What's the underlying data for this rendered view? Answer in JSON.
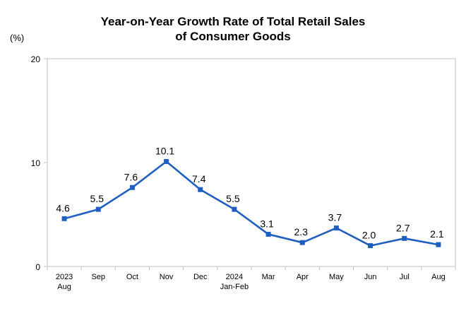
{
  "chart_data": {
    "type": "line",
    "title_lines": [
      "Year-on-Year Growth Rate of Total Retail Sales",
      "of Consumer Goods"
    ],
    "unit": "(%)",
    "categories": [
      [
        "2023",
        "Aug"
      ],
      [
        "Sep"
      ],
      [
        "Oct"
      ],
      [
        "Nov"
      ],
      [
        "Dec"
      ],
      [
        "2024",
        "Jan-Feb"
      ],
      [
        "Mar"
      ],
      [
        "Apr"
      ],
      [
        "May"
      ],
      [
        "Jun"
      ],
      [
        "Jul"
      ],
      [
        "Aug"
      ]
    ],
    "values": [
      4.6,
      5.5,
      7.6,
      10.1,
      7.4,
      5.5,
      3.1,
      2.3,
      3.7,
      2.0,
      2.7,
      2.1
    ],
    "data_labels": [
      "4.6",
      "5.5",
      "7.6",
      "10.1",
      "7.4",
      "5.5",
      "3.1",
      "2.3",
      "3.7",
      "2.0",
      "2.7",
      "2.1"
    ],
    "yticks": [
      "0",
      "10",
      "20"
    ],
    "ylim": [
      0,
      20
    ],
    "grid": false,
    "colors": {
      "line": "#1f5fbf",
      "marker": "#1f5fbf",
      "axis": "#bfbfbf"
    }
  }
}
